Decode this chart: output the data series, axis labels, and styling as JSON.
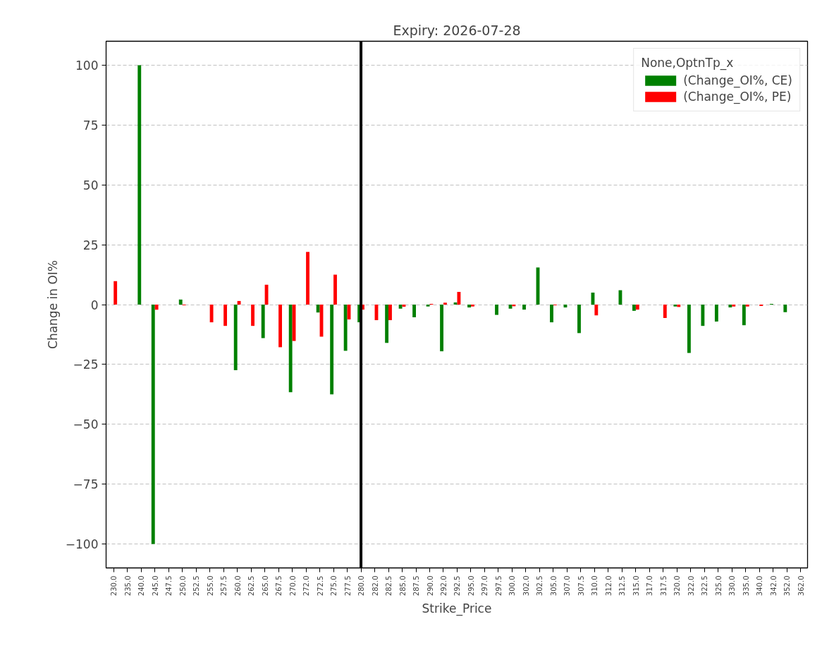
{
  "chart_data": {
    "type": "bar",
    "title": "Expiry: 2026-07-28",
    "xlabel": "Strike_Price",
    "ylabel": "Change in OI%",
    "legend_title": "None,OptnTp_x",
    "categories": [
      "230.0",
      "235.0",
      "240.0",
      "245.0",
      "247.5",
      "250.0",
      "252.5",
      "255.0",
      "257.5",
      "260.0",
      "262.5",
      "265.0",
      "267.5",
      "270.0",
      "272.0",
      "272.5",
      "275.0",
      "277.5",
      "280.0",
      "282.0",
      "282.5",
      "285.0",
      "287.5",
      "290.0",
      "292.0",
      "292.5",
      "295.0",
      "297.0",
      "297.5",
      "300.0",
      "302.0",
      "302.5",
      "305.0",
      "307.0",
      "307.5",
      "310.0",
      "312.0",
      "312.5",
      "315.0",
      "317.0",
      "317.5",
      "320.0",
      "322.0",
      "322.5",
      "325.0",
      "330.0",
      "335.0",
      "340.0",
      "342.0",
      "352.0",
      "362.0"
    ],
    "series": [
      {
        "name": "(Change_OI%, CE)",
        "color": "#008000",
        "values": [
          0,
          0,
          100,
          -100,
          0,
          2.1,
          0,
          0,
          0,
          -27.4,
          0,
          -14.0,
          0,
          -36.6,
          0,
          -3.3,
          -37.5,
          -19.3,
          -7.4,
          0,
          -16.0,
          -1.7,
          -5.3,
          -0.8,
          -19.5,
          0.9,
          -1.2,
          0,
          -4.3,
          -1.7,
          -2.1,
          15.5,
          -7.4,
          -1.2,
          -11.9,
          5.0,
          0,
          6.0,
          -2.6,
          0,
          0,
          -0.8,
          -20.2,
          -8.9,
          -7.1,
          -1.2,
          -8.6,
          0,
          0.3,
          -3.2,
          0
        ]
      },
      {
        "name": "(Change_OI%, PE)",
        "color": "#ff0000",
        "values": [
          9.8,
          0,
          0,
          -2.1,
          0,
          -0.3,
          0,
          -7.4,
          -8.9,
          1.5,
          -8.9,
          8.3,
          -17.8,
          -15.2,
          22.0,
          -13.4,
          12.5,
          -6.2,
          -2.1,
          -6.5,
          -6.5,
          -0.9,
          0,
          0.3,
          0.8,
          5.3,
          -0.8,
          0,
          0,
          -0.7,
          0,
          0,
          -0.3,
          0,
          0,
          -4.5,
          0,
          0,
          -2.1,
          0,
          -5.6,
          -1.0,
          0,
          0,
          0,
          -0.8,
          -0.8,
          -0.6,
          0,
          0,
          0
        ]
      }
    ],
    "ylim": [
      -110,
      110
    ],
    "yticks": [
      {
        "value": -100,
        "label": "−100"
      },
      {
        "value": -75,
        "label": "−75"
      },
      {
        "value": -50,
        "label": "−50"
      },
      {
        "value": -25,
        "label": "−25"
      },
      0,
      25,
      50,
      75,
      100
    ],
    "ref_lines": [
      {
        "axis": "x",
        "value": "280.0",
        "color": "#000000"
      }
    ],
    "grid": "y",
    "legend": "top right"
  }
}
